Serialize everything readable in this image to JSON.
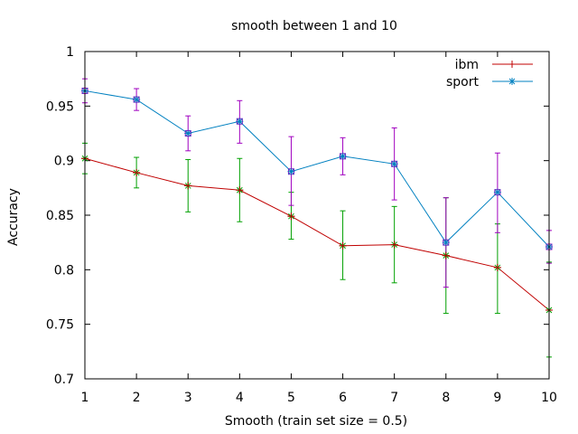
{
  "chart_data": {
    "type": "line",
    "title": "smooth between 1 and 10",
    "xlabel": "Smooth (train set size = 0.5)",
    "ylabel": "Accuracy",
    "xlim": [
      1,
      10
    ],
    "ylim": [
      0.7,
      1
    ],
    "x_ticks": [
      1,
      2,
      3,
      4,
      5,
      6,
      7,
      8,
      9,
      10
    ],
    "y_ticks": [
      0.7,
      0.75,
      0.8,
      0.85,
      0.9,
      0.95,
      1
    ],
    "y_tick_labels": [
      "0.7",
      "0.75",
      "0.8",
      "0.85",
      "0.9",
      "0.95",
      "1"
    ],
    "grid": false,
    "legend_position": "top-right",
    "x": [
      1,
      2,
      3,
      4,
      5,
      6,
      7,
      8,
      9,
      10
    ],
    "series": [
      {
        "name": "ibm",
        "color": "#c00000",
        "marker": "plus",
        "values": [
          0.902,
          0.889,
          0.877,
          0.873,
          0.849,
          0.822,
          0.823,
          0.813,
          0.802,
          0.763
        ],
        "err_low": [
          0.888,
          0.875,
          0.853,
          0.844,
          0.828,
          0.791,
          0.788,
          0.76,
          0.76,
          0.72
        ],
        "err_high": [
          0.916,
          0.903,
          0.901,
          0.902,
          0.871,
          0.854,
          0.858,
          0.866,
          0.842,
          0.807
        ],
        "err_color": "#00a000"
      },
      {
        "name": "sport",
        "color": "#0080c0",
        "marker": "star",
        "values": [
          0.964,
          0.956,
          0.925,
          0.936,
          0.89,
          0.904,
          0.897,
          0.825,
          0.871,
          0.821
        ],
        "err_low": [
          0.953,
          0.946,
          0.909,
          0.916,
          0.859,
          0.887,
          0.864,
          0.784,
          0.834,
          0.806
        ],
        "err_high": [
          0.975,
          0.966,
          0.941,
          0.955,
          0.922,
          0.921,
          0.93,
          0.866,
          0.907,
          0.836
        ],
        "err_color": "#a000c0"
      }
    ]
  }
}
